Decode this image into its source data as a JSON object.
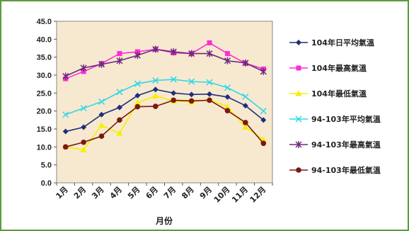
{
  "chart_data": {
    "type": "line",
    "title": "",
    "xlabel": "月份",
    "ylabel": "",
    "ylim": [
      0,
      45
    ],
    "yticks": [
      "0.0",
      "5.0",
      "10.0",
      "15.0",
      "20.0",
      "25.0",
      "30.0",
      "35.0",
      "40.0",
      "45.0"
    ],
    "categories": [
      "1月",
      "2月",
      "3月",
      "4月",
      "5月",
      "6月",
      "7月",
      "8月",
      "9月",
      "10月",
      "11月",
      "12月"
    ],
    "grid": false,
    "legend_position": "right",
    "plot_background": "#f7e9cf",
    "series": [
      {
        "name": "104年日平均氣溫",
        "color": "#1f2f7a",
        "marker": "diamond",
        "values": [
          14.3,
          15.5,
          19.0,
          21.0,
          24.3,
          26.0,
          25.0,
          24.6,
          24.7,
          23.9,
          21.5,
          17.5
        ]
      },
      {
        "name": "104年最高氣溫",
        "color": "#ff2bd6",
        "marker": "square",
        "values": [
          29.0,
          31.0,
          33.2,
          36.0,
          36.5,
          37.2,
          36.2,
          36.0,
          39.0,
          36.0,
          33.3,
          31.7
        ]
      },
      {
        "name": "104年最低氣溫",
        "color": "#f5ef00",
        "marker": "triangle",
        "values": [
          10.0,
          9.2,
          16.0,
          13.8,
          22.3,
          24.2,
          22.8,
          22.5,
          23.2,
          21.2,
          15.5,
          12.0
        ]
      },
      {
        "name": "94-103年平均氣溫",
        "color": "#2fd7e8",
        "marker": "x",
        "values": [
          19.0,
          20.8,
          22.6,
          25.3,
          27.6,
          28.5,
          28.8,
          28.2,
          28.0,
          26.5,
          24.0,
          20.0
        ]
      },
      {
        "name": "94-103年最高氣溫",
        "color": "#6b2a7e",
        "marker": "star",
        "values": [
          29.7,
          32.0,
          33.0,
          34.0,
          35.5,
          37.2,
          36.5,
          36.0,
          36.0,
          34.0,
          33.4,
          31.0
        ]
      },
      {
        "name": "94-103年最低氣溫",
        "color": "#7a1a10",
        "marker": "circle",
        "values": [
          10.0,
          11.3,
          13.0,
          17.5,
          21.2,
          21.3,
          23.0,
          22.8,
          23.0,
          20.1,
          16.8,
          11.0
        ]
      }
    ]
  }
}
